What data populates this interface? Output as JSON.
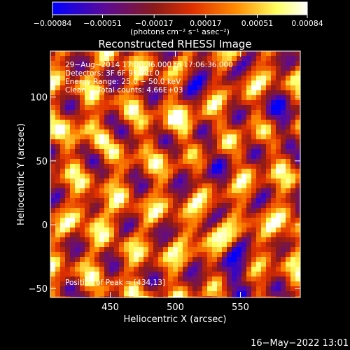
{
  "chart_data": {
    "type": "heatmap",
    "title": "Reconstructed RHESSI Image",
    "xlabel": "Heliocentric X (arcsec)",
    "ylabel": "Heliocentric Y (arcsec)",
    "xlim": [
      404,
      596
    ],
    "ylim": [
      -57,
      136
    ],
    "x_ticks": [
      {
        "value": 450,
        "label": "450"
      },
      {
        "value": 500,
        "label": "500"
      },
      {
        "value": 550,
        "label": "550"
      }
    ],
    "y_ticks": [
      {
        "value": -50,
        "label": "−50"
      },
      {
        "value": 0,
        "label": "0"
      },
      {
        "value": 50,
        "label": "50"
      },
      {
        "value": 100,
        "label": "100"
      }
    ],
    "colorbar": {
      "range": [
        -0.00084,
        0.00084
      ],
      "tick_labels": [
        "−0.00084",
        "−0.00051",
        "−0.00017",
        "0.00017",
        "0.00051",
        "0.00084"
      ],
      "tick_values": [
        -0.00084,
        -0.00051,
        -0.00017,
        0.00017,
        0.00051,
        0.00084
      ],
      "units_label": "(photons cm⁻² s⁻¹ asec⁻²)",
      "colors": [
        "#0000ff",
        "#5a0a9a",
        "#8a1a1a",
        "#e03000",
        "#ff8c00",
        "#ffff60",
        "#ffffff"
      ]
    },
    "annotations": [
      "29−Aug−2014 17:00:36.000 to 17:06:36.000",
      "Detectors: 3F 6F 9F, Att 0",
      "Energy Range: 25.0 − 50.0 keV",
      "Clean     Total counts: 4.66E+03"
    ],
    "peak_label": "Position of Peak = [434,13]",
    "footer_date": "16−May−2022 13:01"
  }
}
